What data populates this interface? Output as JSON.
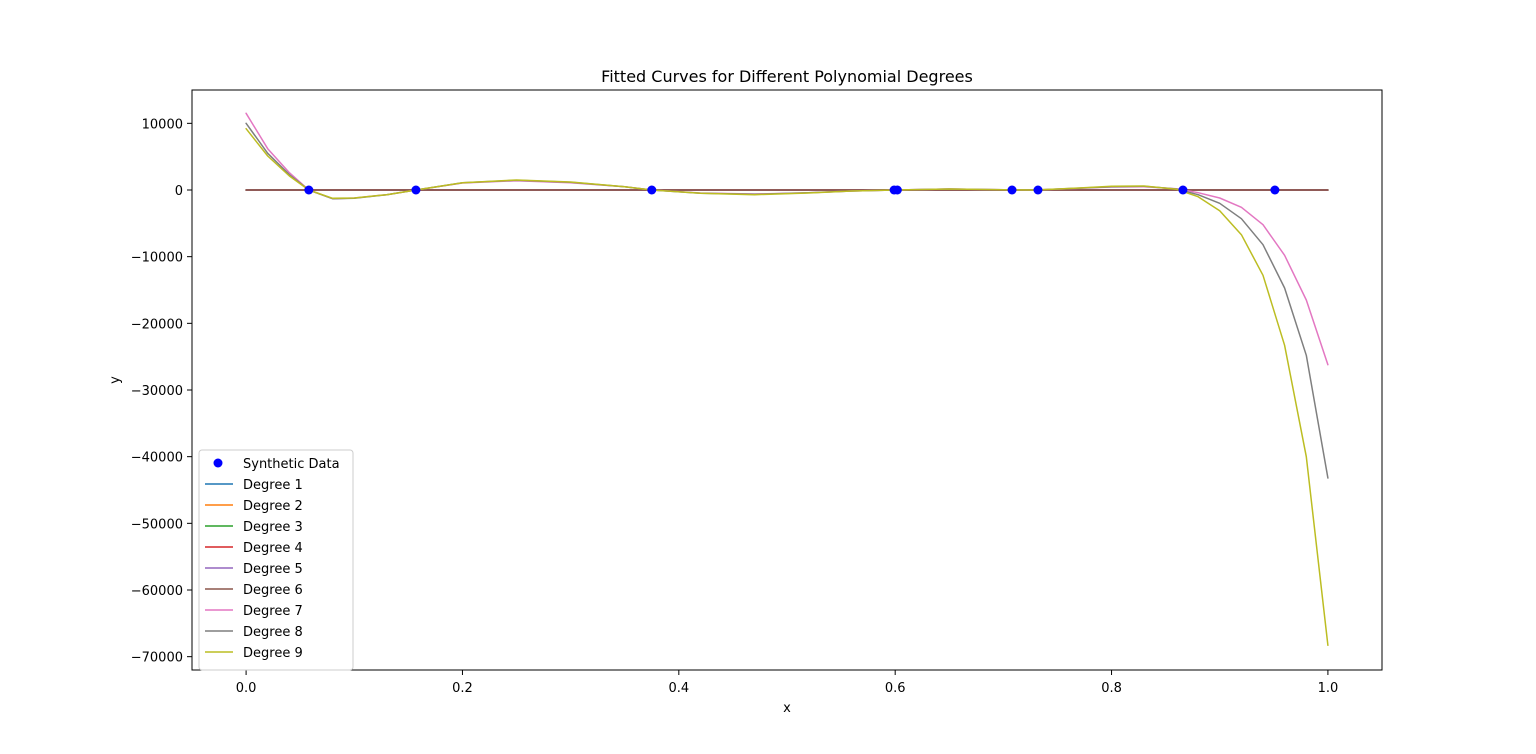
{
  "chart_data": {
    "type": "line",
    "title": "Fitted Curves for Different Polynomial Degrees",
    "xlabel": "x",
    "ylabel": "y",
    "xlim": [
      -0.05,
      1.05
    ],
    "ylim": [
      -72000,
      15000
    ],
    "xticks": [
      0.0,
      0.2,
      0.4,
      0.6,
      0.8,
      1.0
    ],
    "xtick_labels": [
      "0.0",
      "0.2",
      "0.4",
      "0.6",
      "0.8",
      "1.0"
    ],
    "yticks": [
      10000,
      0,
      -10000,
      -20000,
      -30000,
      -40000,
      -50000,
      -60000,
      -70000
    ],
    "ytick_labels": [
      "10000",
      "0",
      "−10000",
      "−20000",
      "−30000",
      "−40000",
      "−50000",
      "−60000",
      "−70000"
    ],
    "grid": false,
    "legend_position": "lower-left",
    "scatter": {
      "name": "Synthetic Data",
      "color": "#0000ff",
      "points": [
        [
          0.058,
          0
        ],
        [
          0.157,
          0
        ],
        [
          0.375,
          0
        ],
        [
          0.599,
          0
        ],
        [
          0.602,
          0
        ],
        [
          0.708,
          0
        ],
        [
          0.732,
          0
        ],
        [
          0.866,
          0
        ],
        [
          0.951,
          0
        ]
      ]
    },
    "series": [
      {
        "name": "Degree 1",
        "color": "#1f77b4",
        "x": [
          0,
          1
        ],
        "y": [
          0,
          0
        ]
      },
      {
        "name": "Degree 2",
        "color": "#ff7f0e",
        "x": [
          0,
          1
        ],
        "y": [
          0,
          0
        ]
      },
      {
        "name": "Degree 3",
        "color": "#2ca02c",
        "x": [
          0,
          1
        ],
        "y": [
          0,
          0
        ]
      },
      {
        "name": "Degree 4",
        "color": "#d62728",
        "x": [
          0,
          1
        ],
        "y": [
          0,
          0
        ]
      },
      {
        "name": "Degree 5",
        "color": "#9467bd",
        "x": [
          0,
          1
        ],
        "y": [
          0,
          0
        ]
      },
      {
        "name": "Degree 6",
        "color": "#8c564b",
        "x": [
          0,
          1
        ],
        "y": [
          0,
          0
        ]
      },
      {
        "name": "Degree 7",
        "color": "#e377c2",
        "x": [
          0,
          0.02,
          0.04,
          0.058,
          0.08,
          0.1,
          0.13,
          0.157,
          0.2,
          0.25,
          0.3,
          0.35,
          0.375,
          0.42,
          0.47,
          0.52,
          0.56,
          0.6,
          0.65,
          0.7,
          0.73,
          0.77,
          0.8,
          0.83,
          0.86,
          0.88,
          0.9,
          0.92,
          0.94,
          0.96,
          0.98,
          1.0
        ],
        "y": [
          11500,
          6200,
          2600,
          0,
          -1300,
          -1200,
          -700,
          0,
          1050,
          1400,
          1100,
          500,
          0,
          -450,
          -600,
          -400,
          -150,
          0,
          150,
          50,
          0,
          250,
          450,
          500,
          200,
          -400,
          -1200,
          -2600,
          -5200,
          -9800,
          -16500,
          -26200
        ]
      },
      {
        "name": "Degree 8",
        "color": "#7f7f7f",
        "x": [
          0,
          0.02,
          0.04,
          0.058,
          0.08,
          0.1,
          0.13,
          0.157,
          0.2,
          0.25,
          0.3,
          0.35,
          0.375,
          0.42,
          0.47,
          0.52,
          0.56,
          0.6,
          0.65,
          0.7,
          0.73,
          0.77,
          0.8,
          0.83,
          0.86,
          0.88,
          0.9,
          0.92,
          0.94,
          0.96,
          0.98,
          1.0
        ],
        "y": [
          10000,
          5500,
          2300,
          0,
          -1300,
          -1250,
          -700,
          0,
          1100,
          1450,
          1150,
          500,
          0,
          -500,
          -650,
          -420,
          -150,
          0,
          150,
          50,
          0,
          280,
          500,
          550,
          150,
          -700,
          -2000,
          -4300,
          -8200,
          -14700,
          -24800,
          -43200
        ]
      },
      {
        "name": "Degree 9",
        "color": "#bcbd22",
        "x": [
          0,
          0.02,
          0.04,
          0.058,
          0.08,
          0.1,
          0.13,
          0.157,
          0.2,
          0.25,
          0.3,
          0.35,
          0.375,
          0.42,
          0.47,
          0.52,
          0.56,
          0.6,
          0.65,
          0.7,
          0.73,
          0.77,
          0.8,
          0.83,
          0.86,
          0.88,
          0.9,
          0.92,
          0.94,
          0.96,
          0.98,
          1.0
        ],
        "y": [
          9200,
          5100,
          2100,
          0,
          -1250,
          -1200,
          -700,
          0,
          1100,
          1500,
          1200,
          500,
          0,
          -500,
          -700,
          -450,
          -150,
          0,
          150,
          50,
          0,
          300,
          550,
          600,
          100,
          -1000,
          -3100,
          -6700,
          -12800,
          -23300,
          -40000,
          -68300
        ]
      }
    ]
  }
}
